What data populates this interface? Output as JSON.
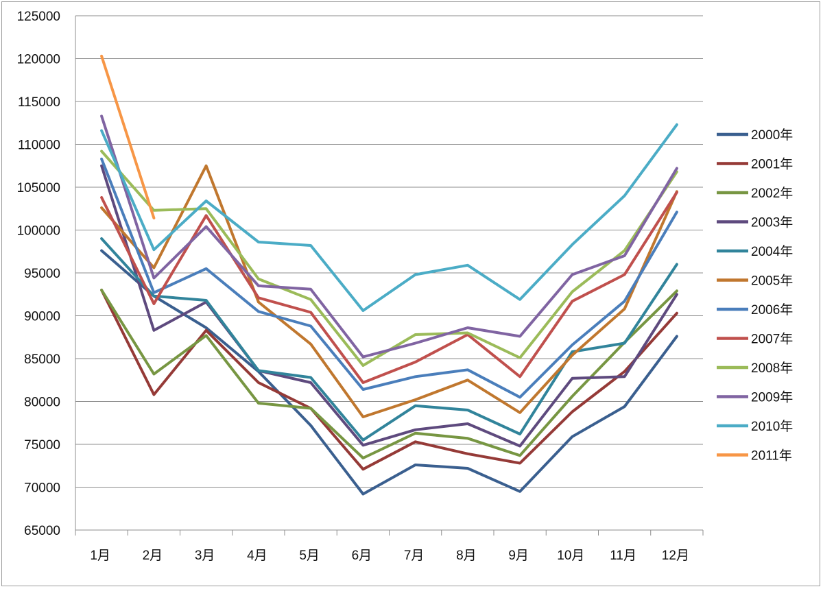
{
  "chart_data": {
    "type": "line",
    "title": "",
    "xlabel": "",
    "ylabel": "",
    "categories": [
      "1月",
      "2月",
      "3月",
      "4月",
      "5月",
      "6月",
      "7月",
      "8月",
      "9月",
      "10月",
      "11月",
      "12月"
    ],
    "ylim": [
      65000,
      125000
    ],
    "yticks": [
      65000,
      70000,
      75000,
      80000,
      85000,
      90000,
      95000,
      100000,
      105000,
      110000,
      115000,
      120000,
      125000
    ],
    "grid": true,
    "legend_position": "right",
    "series": [
      {
        "name": "2000年",
        "color": "#3a5f8f",
        "values": [
          97600,
          92300,
          88600,
          83500,
          77200,
          69200,
          72600,
          72200,
          69500,
          75900,
          79400,
          87600
        ]
      },
      {
        "name": "2001年",
        "color": "#953a37",
        "values": [
          93000,
          80800,
          88300,
          82200,
          79200,
          72100,
          75300,
          73900,
          72800,
          78800,
          83500,
          90300
        ]
      },
      {
        "name": "2002年",
        "color": "#779642",
        "values": [
          93000,
          83200,
          87700,
          79800,
          79200,
          73400,
          76300,
          75700,
          73700,
          80600,
          86900,
          92900
        ]
      },
      {
        "name": "2003年",
        "color": "#5e4a7e",
        "values": [
          107500,
          88300,
          91600,
          83600,
          82200,
          74900,
          76700,
          77400,
          74800,
          82700,
          82900,
          92500
        ]
      },
      {
        "name": "2004年",
        "color": "#31849b",
        "values": [
          99000,
          92300,
          91800,
          83600,
          82800,
          75500,
          79500,
          79000,
          76200,
          85800,
          86800,
          96000
        ]
      },
      {
        "name": "2005年",
        "color": "#c0772e",
        "values": [
          102600,
          95600,
          107500,
          91600,
          86700,
          78200,
          80200,
          82500,
          78700,
          85400,
          90800,
          104500
        ]
      },
      {
        "name": "2006年",
        "color": "#4a7ebb",
        "values": [
          108300,
          92700,
          95500,
          90500,
          88800,
          81400,
          82900,
          83700,
          80500,
          86600,
          91700,
          102100
        ]
      },
      {
        "name": "2007年",
        "color": "#c0504d",
        "values": [
          103800,
          91400,
          101700,
          92100,
          90400,
          82200,
          84600,
          87800,
          82900,
          91700,
          94800,
          104400
        ]
      },
      {
        "name": "2008年",
        "color": "#9bbb59",
        "values": [
          109200,
          102300,
          102500,
          94300,
          91900,
          84200,
          87800,
          88000,
          85100,
          92800,
          97600,
          106800
        ]
      },
      {
        "name": "2009年",
        "color": "#8064a2",
        "values": [
          113300,
          94400,
          100400,
          93500,
          93100,
          85200,
          86800,
          88600,
          87600,
          94800,
          97000,
          107200
        ]
      },
      {
        "name": "2010年",
        "color": "#4bacc6",
        "values": [
          111600,
          97700,
          103400,
          98600,
          98200,
          90600,
          94800,
          95900,
          91900,
          98300,
          104000,
          112300
        ]
      },
      {
        "name": "2011年",
        "color": "#f79646",
        "values": [
          120300,
          101400,
          null,
          null,
          null,
          null,
          null,
          null,
          null,
          null,
          null,
          null
        ]
      }
    ]
  }
}
